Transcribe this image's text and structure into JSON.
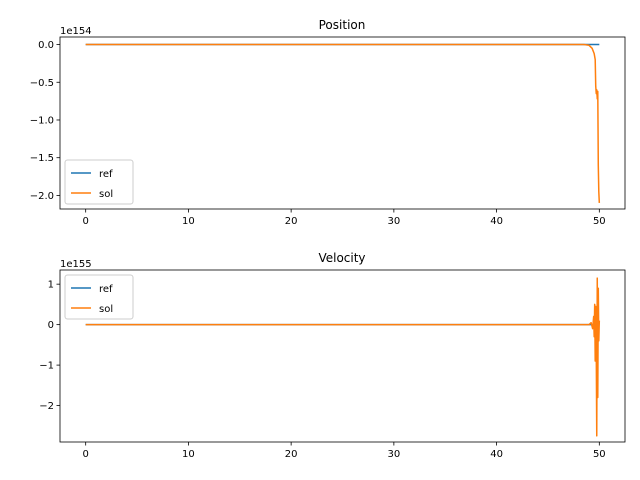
{
  "chart_data": [
    {
      "type": "line",
      "title": "Position",
      "offset_label": "1e154",
      "xlim": [
        -2.5,
        52.5
      ],
      "ylim": [
        -2.18,
        0.1
      ],
      "xticks": [
        0,
        10,
        20,
        30,
        40,
        50
      ],
      "xtick_labels": [
        "0",
        "10",
        "20",
        "30",
        "40",
        "50"
      ],
      "yticks": [
        0.0,
        -0.5,
        -1.0,
        -1.5,
        -2.0
      ],
      "ytick_labels": [
        "0.0",
        "−0.5",
        "−1.0",
        "−1.5",
        "−2.0"
      ],
      "legend_position": "lower-left",
      "series": [
        {
          "name": "ref",
          "color": "#1f77b4",
          "x": [
            0,
            10,
            20,
            30,
            40,
            50
          ],
          "y": [
            0,
            0,
            0,
            0,
            0,
            0
          ]
        },
        {
          "name": "sol",
          "color": "#ff7f0e",
          "x": [
            0,
            10,
            20,
            30,
            40,
            48.5,
            49.0,
            49.3,
            49.5,
            49.6,
            49.65,
            49.7,
            49.75,
            49.8,
            49.85,
            49.9,
            49.95,
            50.0
          ],
          "y": [
            0,
            0,
            0,
            0,
            0,
            0,
            -0.01,
            -0.05,
            -0.12,
            -0.2,
            -0.55,
            -0.65,
            -0.6,
            -0.72,
            -0.62,
            -1.6,
            -1.95,
            -2.1
          ]
        }
      ]
    },
    {
      "type": "line",
      "title": "Velocity",
      "offset_label": "1e155",
      "xlim": [
        -2.5,
        52.5
      ],
      "ylim": [
        -2.9,
        1.35
      ],
      "xticks": [
        0,
        10,
        20,
        30,
        40,
        50
      ],
      "xtick_labels": [
        "0",
        "10",
        "20",
        "30",
        "40",
        "50"
      ],
      "yticks": [
        1,
        0,
        -1,
        -2
      ],
      "ytick_labels": [
        "1",
        "0",
        "−1",
        "−2"
      ],
      "legend_position": "upper-left",
      "series": [
        {
          "name": "ref",
          "color": "#1f77b4",
          "x": [
            0,
            10,
            20,
            30,
            40,
            50
          ],
          "y": [
            0,
            0,
            0,
            0,
            0,
            0
          ]
        },
        {
          "name": "sol",
          "color": "#ff7f0e",
          "x": [
            0,
            10,
            20,
            30,
            40,
            49.0,
            49.2,
            49.35,
            49.45,
            49.5,
            49.55,
            49.6,
            49.65,
            49.7,
            49.75,
            49.8,
            49.85,
            49.9,
            49.95,
            50.0
          ],
          "y": [
            0,
            0,
            0,
            0,
            0,
            0,
            0.05,
            -0.1,
            0.2,
            -0.3,
            0.5,
            -0.9,
            0.45,
            -0.6,
            -2.75,
            1.15,
            -1.8,
            0.9,
            -0.4,
            0.1
          ]
        }
      ]
    }
  ]
}
